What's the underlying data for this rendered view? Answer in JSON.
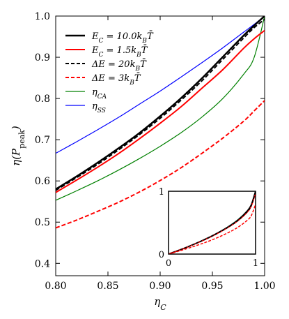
{
  "chart_data": [
    {
      "type": "line",
      "xlabel": "η_C",
      "ylabel": "η(P_peak)",
      "xlim": [
        0.8,
        1.0
      ],
      "ylim": [
        0.37,
        1.0
      ],
      "xticks": [
        "0.80",
        "0.85",
        "0.90",
        "0.95",
        "1.00"
      ],
      "yticks": [
        "0.4",
        "0.5",
        "0.6",
        "0.7",
        "0.8",
        "0.9",
        "1.0"
      ],
      "legend_position": "top-left",
      "x": [
        0.8,
        0.82,
        0.84,
        0.86,
        0.88,
        0.9,
        0.92,
        0.94,
        0.96,
        0.98,
        0.99,
        1.0
      ],
      "series": [
        {
          "name": "E_C = 10.0k_B T̄",
          "style": "solid",
          "color": "#000000",
          "width": 2.5,
          "values": [
            0.58,
            0.611,
            0.644,
            0.679,
            0.716,
            0.757,
            0.801,
            0.849,
            0.901,
            0.953,
            0.977,
            1.0
          ]
        },
        {
          "name": "E_C = 1.5k_B T̄",
          "style": "solid",
          "color": "#ff0000",
          "width": 2.0,
          "values": [
            0.572,
            0.602,
            0.633,
            0.666,
            0.702,
            0.74,
            0.78,
            0.825,
            0.87,
            0.922,
            0.945,
            0.965
          ]
        },
        {
          "name": "ΔE = 20k_B T̄",
          "style": "dashed",
          "color": "#000000",
          "width": 2.0,
          "values": [
            0.577,
            0.608,
            0.64,
            0.675,
            0.712,
            0.752,
            0.796,
            0.843,
            0.895,
            0.947,
            0.972,
            0.992
          ]
        },
        {
          "name": "ΔE = 3k_B T̄",
          "style": "dashed",
          "color": "#ff0000",
          "width": 2.0,
          "values": [
            0.486,
            0.505,
            0.526,
            0.548,
            0.573,
            0.601,
            0.632,
            0.667,
            0.704,
            0.745,
            0.77,
            0.795
          ]
        },
        {
          "name": "η_CA",
          "style": "solid",
          "color": "#008000",
          "width": 1.2,
          "values": [
            0.553,
            0.576,
            0.6,
            0.626,
            0.654,
            0.684,
            0.717,
            0.755,
            0.8,
            0.859,
            0.9,
            1.0
          ]
        },
        {
          "name": "η_SS",
          "style": "solid",
          "color": "#0000ff",
          "width": 1.2,
          "values": [
            0.667,
            0.695,
            0.724,
            0.754,
            0.786,
            0.818,
            0.852,
            0.887,
            0.923,
            0.961,
            0.98,
            1.0
          ]
        }
      ]
    },
    {
      "type": "line",
      "xlim": [
        0,
        1
      ],
      "ylim": [
        0,
        1
      ],
      "xticks": [
        "0",
        "1"
      ],
      "yticks": [
        "0",
        "1"
      ],
      "x": [
        0,
        0.1,
        0.2,
        0.3,
        0.4,
        0.5,
        0.6,
        0.7,
        0.8,
        0.9,
        0.95,
        1.0
      ],
      "series": [
        {
          "color": "#0000ff",
          "style": "solid",
          "width": 1.0,
          "values": [
            0,
            0.0513,
            0.1056,
            0.1633,
            0.2254,
            0.2929,
            0.3675,
            0.4523,
            0.5528,
            0.6838,
            0.7763,
            1.0
          ]
        },
        {
          "color": "#008000",
          "style": "solid",
          "width": 1.0,
          "values": [
            0,
            0.0513,
            0.1056,
            0.1633,
            0.2254,
            0.2929,
            0.3675,
            0.4523,
            0.5528,
            0.6838,
            0.7763,
            1.0
          ]
        },
        {
          "color": "#000000",
          "style": "solid",
          "width": 2.0,
          "values": [
            0,
            0.051,
            0.104,
            0.161,
            0.222,
            0.288,
            0.362,
            0.444,
            0.541,
            0.679,
            0.78,
            1.0
          ]
        },
        {
          "color": "#ff0000",
          "style": "solid",
          "width": 1.5,
          "values": [
            0,
            0.0505,
            0.103,
            0.159,
            0.219,
            0.284,
            0.356,
            0.437,
            0.533,
            0.66,
            0.76,
            0.965
          ]
        },
        {
          "color": "#000000",
          "style": "dashed",
          "width": 1.5,
          "values": [
            0,
            0.0508,
            0.1035,
            0.16,
            0.22,
            0.286,
            0.359,
            0.441,
            0.538,
            0.67,
            0.77,
            0.992
          ]
        },
        {
          "color": "#ff0000",
          "style": "dashed",
          "width": 1.5,
          "values": [
            0,
            0.04,
            0.082,
            0.126,
            0.174,
            0.226,
            0.285,
            0.351,
            0.429,
            0.533,
            0.61,
            0.795
          ]
        }
      ]
    }
  ]
}
